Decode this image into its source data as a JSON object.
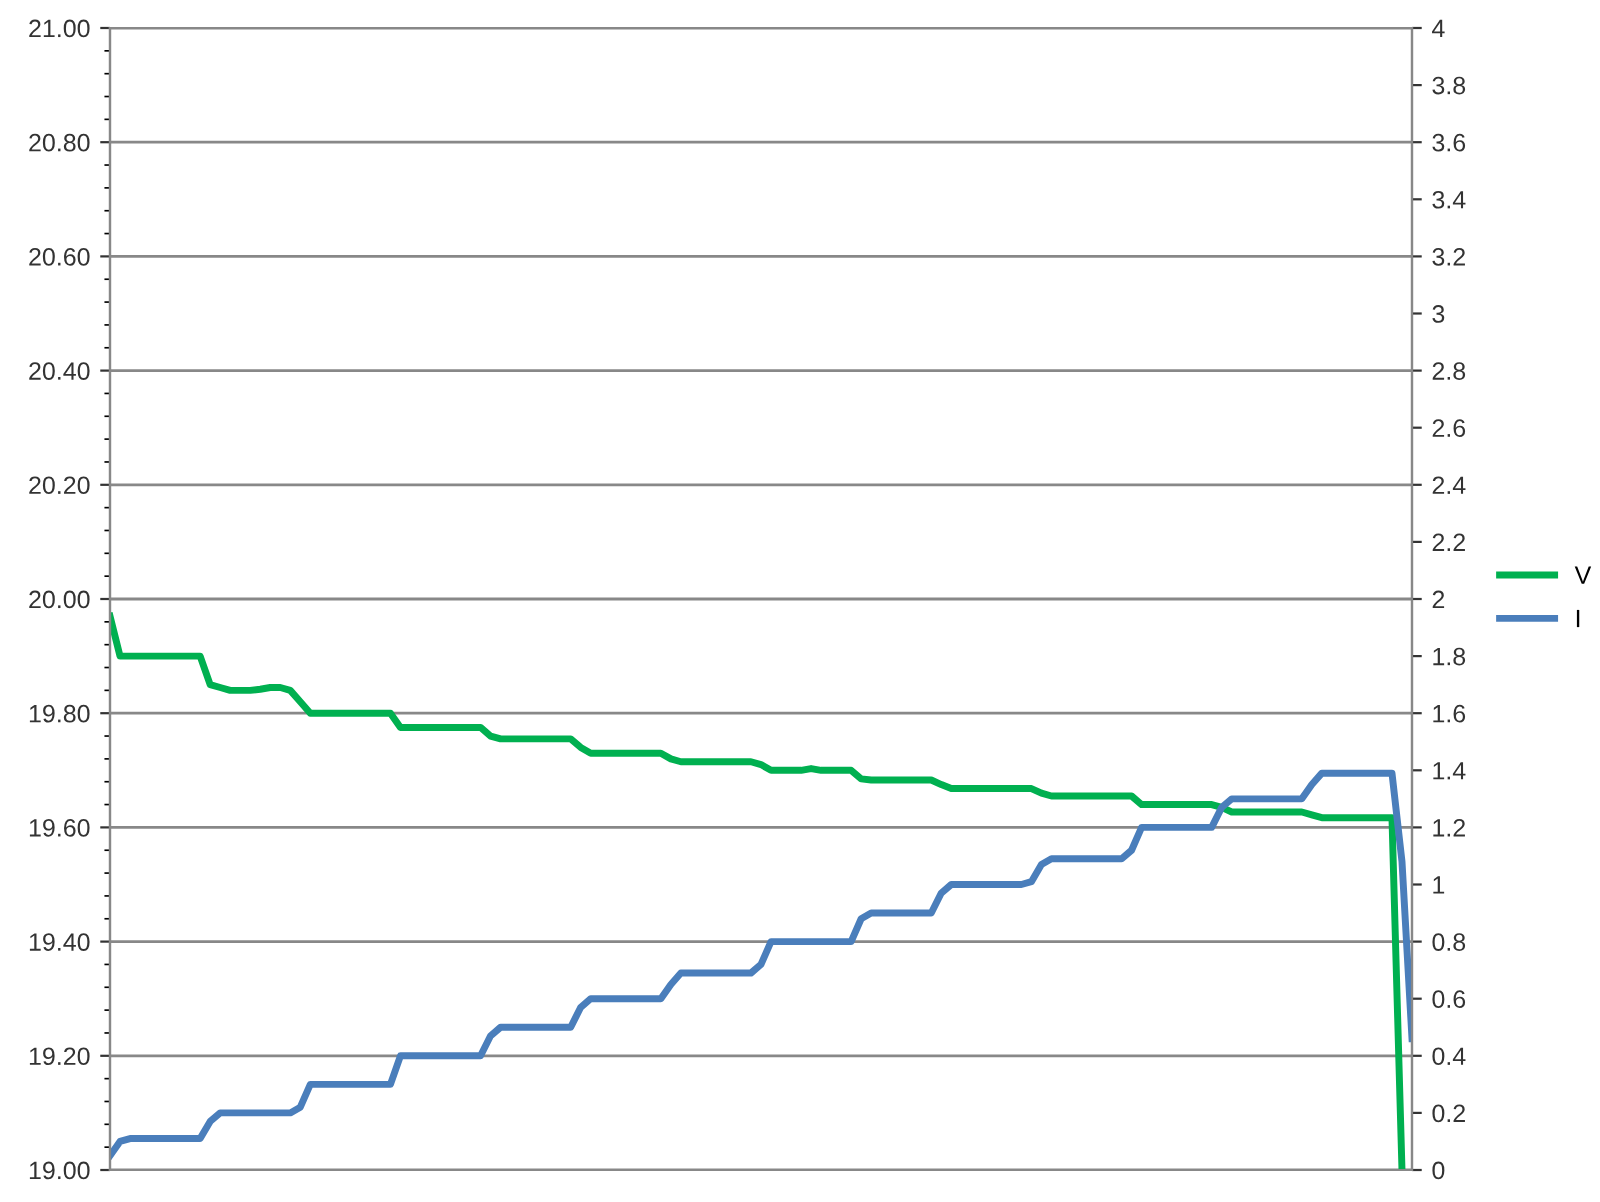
{
  "chart_data": {
    "type": "line",
    "categories": [
      null,
      null,
      null,
      null,
      null,
      null,
      null,
      null,
      null,
      null,
      null,
      null,
      null,
      null,
      null,
      null,
      null,
      null,
      null,
      null,
      null,
      null,
      null,
      null,
      null,
      null,
      null,
      null,
      null,
      null,
      null,
      null,
      null,
      null,
      null,
      null,
      null,
      null,
      null,
      null,
      null,
      null,
      null,
      null,
      null,
      null,
      null,
      null,
      null,
      null,
      null,
      null,
      null,
      null,
      null,
      null,
      null,
      null,
      null,
      null,
      null,
      null,
      null,
      null,
      null,
      null,
      null,
      null,
      null,
      null,
      null,
      null,
      null,
      null,
      null,
      null,
      null,
      null,
      null,
      null,
      null,
      null,
      null,
      null,
      null,
      null,
      null,
      null,
      null,
      null,
      null,
      null,
      null,
      null,
      null,
      null,
      null,
      null,
      null,
      null,
      null,
      null,
      null,
      null,
      null,
      null,
      null,
      null,
      null,
      null,
      null,
      null,
      null,
      null,
      null,
      null,
      null,
      null,
      null,
      null,
      null,
      null,
      null,
      null,
      null,
      null,
      null,
      null,
      null,
      null,
      null
    ],
    "series": [
      {
        "name": "V",
        "color": "#00b050",
        "values": [
          19.97,
          19.9,
          19.9,
          19.9,
          19.9,
          19.9,
          19.9,
          19.9,
          19.9,
          19.9,
          19.85,
          19.845,
          19.84,
          19.84,
          19.84,
          19.842,
          19.845,
          19.845,
          19.84,
          19.82,
          19.8,
          19.8,
          19.8,
          19.8,
          19.8,
          19.8,
          19.8,
          19.8,
          19.8,
          19.775,
          19.775,
          19.775,
          19.775,
          19.775,
          19.775,
          19.775,
          19.775,
          19.775,
          19.76,
          19.755,
          19.755,
          19.755,
          19.755,
          19.755,
          19.755,
          19.755,
          19.755,
          19.74,
          19.73,
          19.73,
          19.73,
          19.73,
          19.73,
          19.73,
          19.73,
          19.73,
          19.72,
          19.715,
          19.715,
          19.715,
          19.715,
          19.715,
          19.715,
          19.715,
          19.715,
          19.71,
          19.7,
          19.7,
          19.7,
          19.7,
          19.703,
          19.7,
          19.7,
          19.7,
          19.7,
          19.685,
          19.683,
          19.683,
          19.683,
          19.683,
          19.683,
          19.683,
          19.683,
          19.675,
          19.668,
          19.668,
          19.668,
          19.668,
          19.668,
          19.668,
          19.668,
          19.668,
          19.668,
          19.66,
          19.655,
          19.655,
          19.655,
          19.655,
          19.655,
          19.655,
          19.655,
          19.655,
          19.655,
          19.64,
          19.64,
          19.64,
          19.64,
          19.64,
          19.64,
          19.64,
          19.64,
          19.635,
          19.627,
          19.627,
          19.627,
          19.627,
          19.627,
          19.627,
          19.627,
          19.627,
          19.622,
          19.617,
          19.617,
          19.617,
          19.617,
          19.617,
          19.617,
          19.617,
          19.617,
          19.0,
          null
        ]
      },
      {
        "name": "I",
        "color": "#4a7ebb",
        "axis": "y2",
        "values": [
          0.05,
          0.1,
          0.11,
          0.11,
          0.11,
          0.11,
          0.11,
          0.11,
          0.11,
          0.11,
          0.17,
          0.2,
          0.2,
          0.2,
          0.2,
          0.2,
          0.2,
          0.2,
          0.2,
          0.22,
          0.3,
          0.3,
          0.3,
          0.3,
          0.3,
          0.3,
          0.3,
          0.3,
          0.3,
          0.4,
          0.4,
          0.4,
          0.4,
          0.4,
          0.4,
          0.4,
          0.4,
          0.4,
          0.47,
          0.5,
          0.5,
          0.5,
          0.5,
          0.5,
          0.5,
          0.5,
          0.5,
          0.57,
          0.6,
          0.6,
          0.6,
          0.6,
          0.6,
          0.6,
          0.6,
          0.6,
          0.65,
          0.69,
          0.69,
          0.69,
          0.69,
          0.69,
          0.69,
          0.69,
          0.69,
          0.72,
          0.8,
          0.8,
          0.8,
          0.8,
          0.8,
          0.8,
          0.8,
          0.8,
          0.8,
          0.88,
          0.9,
          0.9,
          0.9,
          0.9,
          0.9,
          0.9,
          0.9,
          0.97,
          1.0,
          1.0,
          1.0,
          1.0,
          1.0,
          1.0,
          1.0,
          1.0,
          1.01,
          1.07,
          1.09,
          1.09,
          1.09,
          1.09,
          1.09,
          1.09,
          1.09,
          1.09,
          1.12,
          1.2,
          1.2,
          1.2,
          1.2,
          1.2,
          1.2,
          1.2,
          1.2,
          1.27,
          1.3,
          1.3,
          1.3,
          1.3,
          1.3,
          1.3,
          1.3,
          1.3,
          1.35,
          1.39,
          1.39,
          1.39,
          1.39,
          1.39,
          1.39,
          1.39,
          1.39,
          1.08,
          0.46
        ]
      }
    ],
    "ylim": [
      19.0,
      21.0
    ],
    "yticks": [
      {
        "value": 19.0,
        "label": "19.00"
      },
      {
        "value": 19.2,
        "label": "19.20"
      },
      {
        "value": 19.4,
        "label": "19.40"
      },
      {
        "value": 19.6,
        "label": "19.60"
      },
      {
        "value": 19.8,
        "label": "19.80"
      },
      {
        "value": 20.0,
        "label": "20.00"
      },
      {
        "value": 20.2,
        "label": "20.20"
      },
      {
        "value": 20.4,
        "label": "20.40"
      },
      {
        "value": 20.6,
        "label": "20.60"
      },
      {
        "value": 20.8,
        "label": "20.80"
      },
      {
        "value": 21.0,
        "label": "21.00"
      }
    ],
    "y2lim": [
      0,
      4
    ],
    "y2ticks": [
      0,
      0.2,
      0.4,
      0.6,
      0.8,
      1,
      1.2,
      1.4,
      1.6,
      1.8,
      2,
      2.2,
      2.4,
      2.6,
      2.8,
      3,
      3.2,
      3.4,
      3.6,
      3.8,
      4
    ],
    "grid": "y",
    "legend": "right",
    "marker": "none",
    "line_style": "solid"
  }
}
